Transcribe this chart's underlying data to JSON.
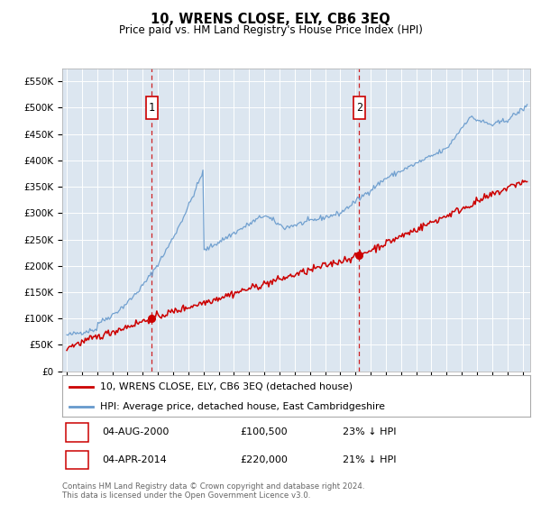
{
  "title": "10, WRENS CLOSE, ELY, CB6 3EQ",
  "subtitle": "Price paid vs. HM Land Registry's House Price Index (HPI)",
  "plot_bg_color": "#dce6f0",
  "yticks": [
    0,
    50000,
    100000,
    150000,
    200000,
    250000,
    300000,
    350000,
    400000,
    450000,
    500000,
    550000
  ],
  "ytick_labels": [
    "£0",
    "£50K",
    "£100K",
    "£150K",
    "£200K",
    "£250K",
    "£300K",
    "£350K",
    "£400K",
    "£450K",
    "£500K",
    "£550K"
  ],
  "ylim": [
    0,
    575000
  ],
  "legend_entries": [
    "10, WRENS CLOSE, ELY, CB6 3EQ (detached house)",
    "HPI: Average price, detached house, East Cambridgeshire"
  ],
  "legend_colors": [
    "#cc0000",
    "#6699cc"
  ],
  "ann1_x": 2000.59,
  "ann2_x": 2014.25,
  "ann_y": 500000,
  "sale1": {
    "date": "04-AUG-2000",
    "price": "£100,500",
    "hpi": "23% ↓ HPI",
    "x_year": 2000.59,
    "y": 100500
  },
  "sale2": {
    "date": "04-APR-2014",
    "price": "£220,000",
    "hpi": "21% ↓ HPI",
    "x_year": 2014.25,
    "y": 220000
  },
  "footer": "Contains HM Land Registry data © Crown copyright and database right 2024.\nThis data is licensed under the Open Government Licence v3.0.",
  "hpi_color": "#6699cc",
  "price_color": "#cc0000",
  "grid_color": "white",
  "xlim_left": 1994.7,
  "xlim_right": 2025.5
}
